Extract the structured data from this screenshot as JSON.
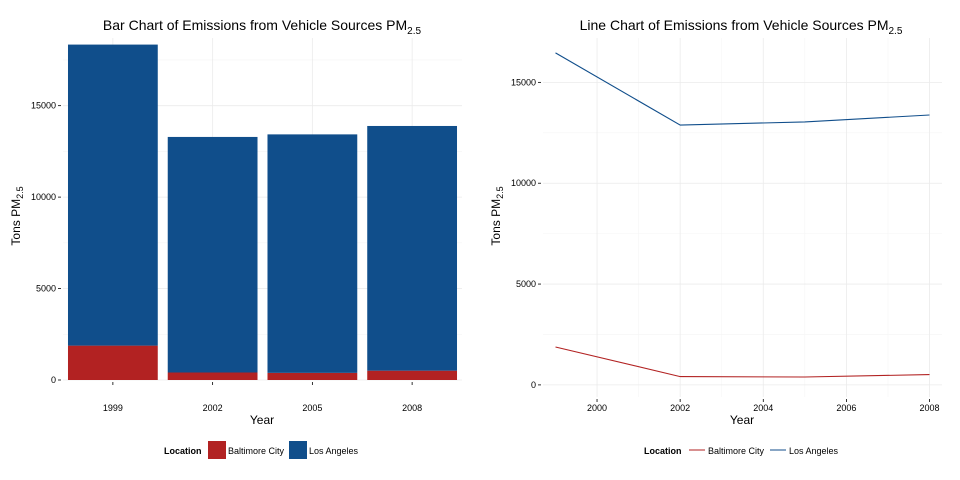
{
  "chart_data": [
    {
      "type": "bar",
      "stacked": true,
      "title": "Bar Chart of Emissions from Vehicle Sources PM",
      "title_subscript": "2.5",
      "xlabel": "Year",
      "ylabel": "Tons PM",
      "ylabel_subscript": "2.5",
      "categories": [
        "1999",
        "2002",
        "2005",
        "2008"
      ],
      "series": [
        {
          "name": "Baltimore City",
          "color": "#b22222",
          "values": [
            1880,
            410,
            390,
            510
          ]
        },
        {
          "name": "Los Angeles",
          "color": "#104e8b",
          "values": [
            16460,
            12880,
            13040,
            13380
          ]
        }
      ],
      "ylim": [
        0,
        18700
      ],
      "yticks": [
        0,
        5000,
        10000,
        15000
      ],
      "grid": true,
      "legend": {
        "title": "Location",
        "position": "bottom"
      }
    },
    {
      "type": "line",
      "title": "Line Chart of Emissions from Vehicle Sources PM",
      "title_subscript": "2.5",
      "xlabel": "Year",
      "ylabel": "Tons PM",
      "ylabel_subscript": "2.5",
      "x": [
        1999,
        2002,
        2005,
        2008
      ],
      "xlim": [
        1998.7,
        2008.3
      ],
      "xticks": [
        2000,
        2002,
        2004,
        2006,
        2008
      ],
      "series": [
        {
          "name": "Baltimore City",
          "color": "#b22222",
          "values": [
            1880,
            410,
            390,
            510
          ]
        },
        {
          "name": "Los Angeles",
          "color": "#104e8b",
          "values": [
            16460,
            12880,
            13040,
            13380
          ]
        }
      ],
      "ylim": [
        -600,
        17200
      ],
      "yticks": [
        0,
        5000,
        10000,
        15000
      ],
      "grid": true,
      "legend": {
        "title": "Location",
        "position": "bottom"
      }
    }
  ]
}
